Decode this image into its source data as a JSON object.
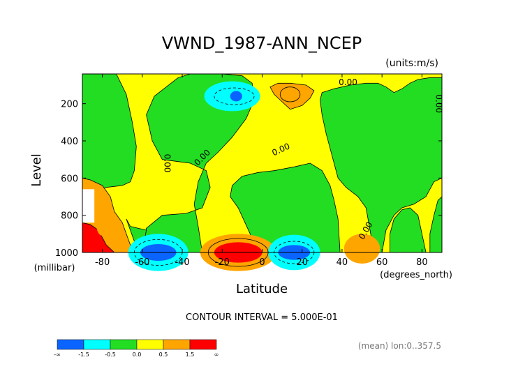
{
  "chart_data": {
    "type": "heatmap",
    "title": "VWND_1987-ANN_NCEP",
    "units": "(units:m/s)",
    "xlabel": "Latitude",
    "ylabel": "Level",
    "x_units": "(degrees_north)",
    "y_units": "(millibar)",
    "xlim": [
      -90,
      90
    ],
    "ylim": [
      1000,
      0
    ],
    "x_ticks": [
      -80,
      -60,
      -40,
      -20,
      0,
      20,
      40,
      60,
      80
    ],
    "y_ticks": [
      200,
      400,
      600,
      800,
      1000
    ],
    "contour_interval": "CONTOUR INTERVAL = 5.000E-01",
    "mean_note": "(mean) lon:0..357.5",
    "contour_labels": [
      "0.00",
      "0.00",
      "0.00",
      "0.00",
      "0.00",
      "0.00"
    ],
    "colorbar": {
      "labels": [
        "-∞",
        "-1.5",
        "-0.5",
        "0.0",
        "0.5",
        "1.5",
        "∞"
      ],
      "bins": [
        {
          "from": "-inf",
          "to": -1.5,
          "color": "#0a64ff"
        },
        {
          "from": -1.5,
          "to": -0.5,
          "color": "#00ffff"
        },
        {
          "from": -0.5,
          "to": 0.0,
          "color": "#22dd22"
        },
        {
          "from": 0.0,
          "to": 0.5,
          "color": "#ffff00"
        },
        {
          "from": 0.5,
          "to": 1.5,
          "color": "#ffa500"
        },
        {
          "from": 1.5,
          "to": "inf",
          "color": "#ff0000"
        }
      ]
    },
    "features": [
      {
        "lat": -13,
        "lev": 170,
        "value": -2.0
      },
      {
        "lat": -12,
        "lev": 1000,
        "value": 2.0
      },
      {
        "lat": -52,
        "lev": 1000,
        "value": -2.0
      },
      {
        "lat": 16,
        "lev": 1000,
        "value": -1.5
      },
      {
        "lat": 50,
        "lev": 960,
        "value": 0.9
      },
      {
        "lat": 12,
        "lev": 130,
        "value": 0.9
      },
      {
        "lat": -85,
        "lev": 960,
        "value": 2.5
      },
      {
        "lat": 0,
        "lev": 550,
        "value": 0.3
      }
    ]
  }
}
